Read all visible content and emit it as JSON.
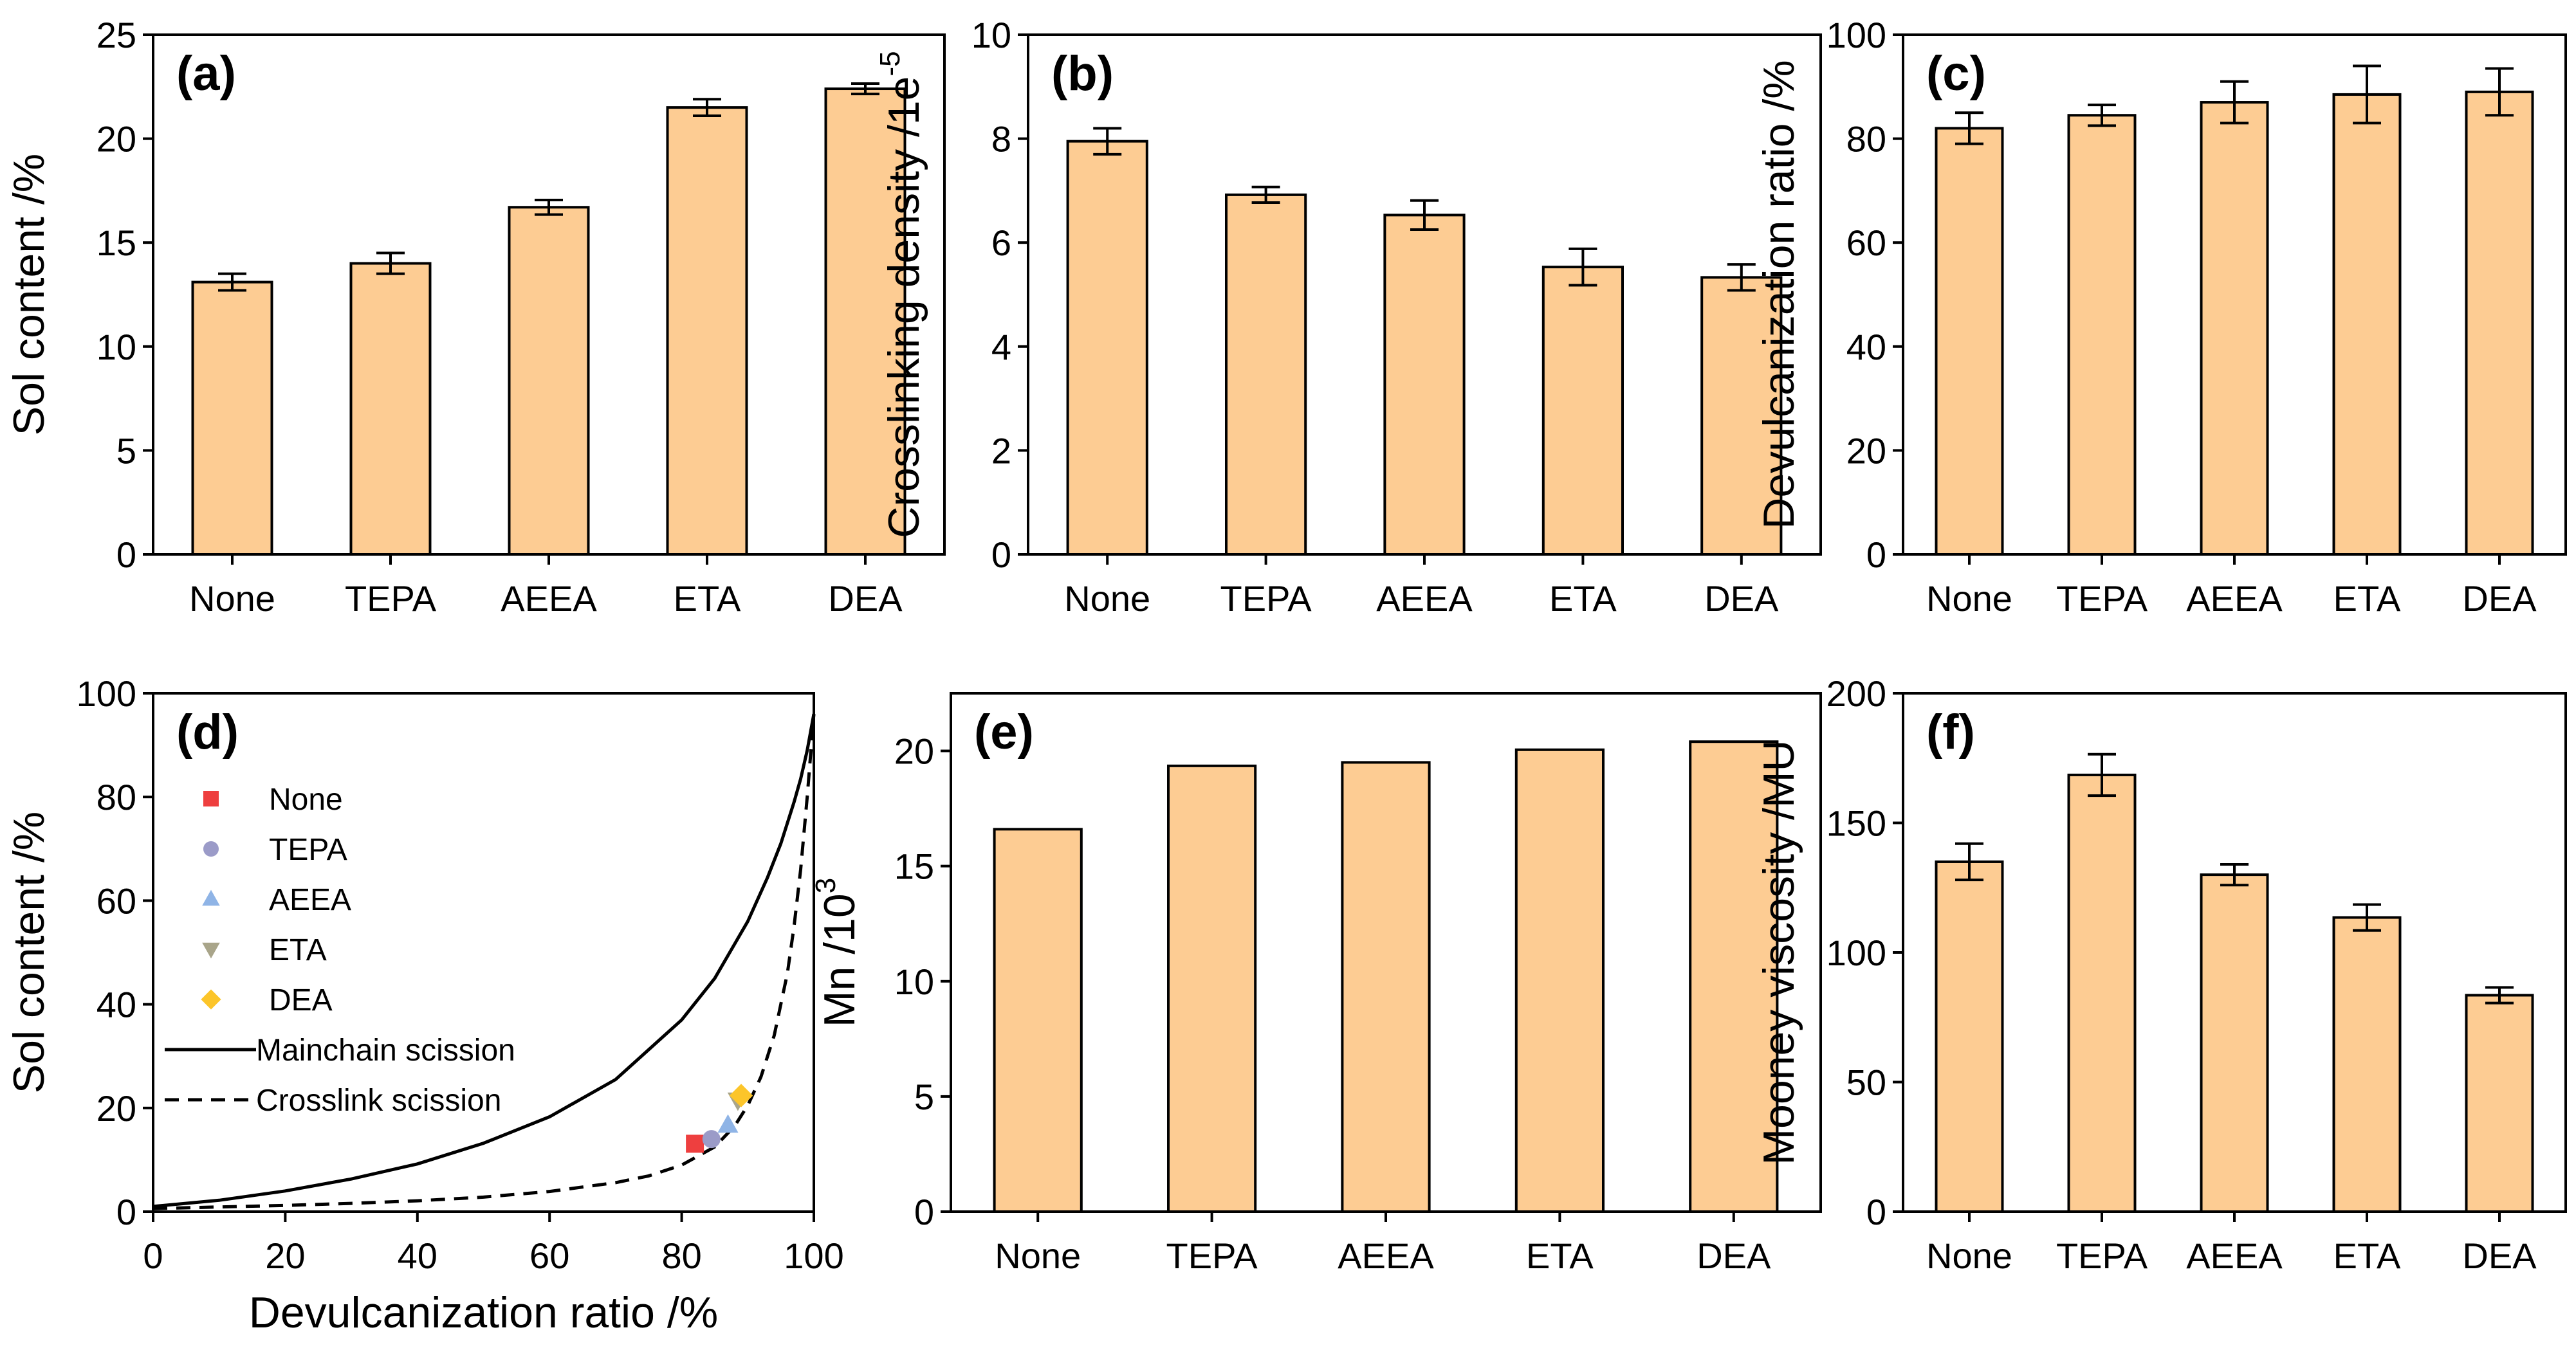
{
  "colors": {
    "bar_fill": "#fdcc93",
    "none_marker": "#ee3f3f",
    "tepa_marker": "#9b9bc8",
    "aeea_marker": "#8fb4e6",
    "eta_marker": "#a9a58a",
    "dea_marker": "#fcc52a"
  },
  "chart_data": [
    {
      "id": "a",
      "panel_label": "(a)",
      "type": "bar",
      "categories": [
        "None",
        "TEPA",
        "AEEA",
        "ETA",
        "DEA"
      ],
      "values": [
        13.1,
        14.0,
        16.7,
        21.5,
        22.4
      ],
      "errors": [
        0.4,
        0.5,
        0.35,
        0.4,
        0.25
      ],
      "ylabel": "Sol content /%",
      "ylim": [
        0,
        25
      ],
      "yticks": [
        0,
        5,
        10,
        15,
        20,
        25
      ],
      "ytick_labels": [
        "0",
        "5",
        "10",
        "15",
        "20",
        "25"
      ]
    },
    {
      "id": "b",
      "panel_label": "(b)",
      "type": "bar",
      "categories": [
        "None",
        "TEPA",
        "AEEA",
        "ETA",
        "DEA"
      ],
      "values": [
        7.95,
        6.92,
        6.53,
        5.53,
        5.33
      ],
      "errors": [
        0.25,
        0.15,
        0.28,
        0.35,
        0.25
      ],
      "ylabel": "Crosslinking density /1e",
      "ylabel_sup": "-5",
      "ylim": [
        0,
        10
      ],
      "yticks": [
        0,
        2,
        4,
        6,
        8,
        10
      ],
      "ytick_labels": [
        "0",
        "2",
        "4",
        "6",
        "8",
        "10"
      ]
    },
    {
      "id": "c",
      "panel_label": "(c)",
      "type": "bar",
      "categories": [
        "None",
        "TEPA",
        "AEEA",
        "ETA",
        "DEA"
      ],
      "values": [
        82,
        84.5,
        87,
        88.5,
        89
      ],
      "errors": [
        3,
        2,
        4,
        5.5,
        4.5
      ],
      "ylabel": "Devulcanization ratio /%",
      "ylim": [
        0,
        100
      ],
      "yticks": [
        0,
        20,
        40,
        60,
        80,
        100
      ],
      "ytick_labels": [
        "0",
        "20",
        "40",
        "60",
        "80",
        "100"
      ]
    },
    {
      "id": "d",
      "panel_label": "(d)",
      "type": "scatter",
      "xlabel": "Devulcanization ratio /%",
      "ylabel": "Sol content /%",
      "xlim": [
        0,
        100
      ],
      "ylim": [
        0,
        100
      ],
      "xticks": [
        0,
        20,
        40,
        60,
        80,
        100
      ],
      "xtick_labels": [
        "0",
        "20",
        "40",
        "60",
        "80",
        "100"
      ],
      "yticks": [
        0,
        20,
        40,
        60,
        80,
        100
      ],
      "ytick_labels": [
        "0",
        "20",
        "40",
        "60",
        "80",
        "100"
      ],
      "points": [
        {
          "name": "None",
          "marker": "square",
          "color_key": "none_marker",
          "x": 82,
          "y": 13.1
        },
        {
          "name": "TEPA",
          "marker": "circle",
          "color_key": "tepa_marker",
          "x": 84.5,
          "y": 14.0
        },
        {
          "name": "AEEA",
          "marker": "triangle-up",
          "color_key": "aeea_marker",
          "x": 87,
          "y": 16.7
        },
        {
          "name": "ETA",
          "marker": "triangle-down",
          "color_key": "eta_marker",
          "x": 88.5,
          "y": 21.5
        },
        {
          "name": "DEA",
          "marker": "diamond",
          "color_key": "dea_marker",
          "x": 89,
          "y": 22.4
        }
      ],
      "curves": [
        {
          "name": "Mainchain scission",
          "style": "solid",
          "x": [
            0,
            10,
            20,
            30,
            40,
            50,
            60,
            70,
            80,
            85,
            90,
            93,
            95,
            97,
            98,
            99,
            100
          ],
          "y": [
            1,
            2.2,
            4,
            6.3,
            9.2,
            13.2,
            18.3,
            25.5,
            37,
            45,
            56,
            64.5,
            71,
            79,
            83.5,
            89,
            96
          ]
        },
        {
          "name": "Crosslink scission",
          "style": "dashed",
          "x": [
            0,
            10,
            20,
            30,
            40,
            50,
            60,
            70,
            75,
            80,
            85,
            88,
            90,
            92,
            94,
            96,
            97,
            98,
            99,
            100
          ],
          "y": [
            0.6,
            0.9,
            1.2,
            1.6,
            2.1,
            2.8,
            3.9,
            5.6,
            6.9,
            9,
            12.5,
            16.5,
            20.5,
            26,
            34,
            46,
            55,
            66,
            80,
            96
          ]
        }
      ]
    },
    {
      "id": "e",
      "panel_label": "(e)",
      "type": "bar",
      "categories": [
        "None",
        "TEPA",
        "AEEA",
        "ETA",
        "DEA"
      ],
      "values": [
        16.6,
        19.35,
        19.5,
        20.05,
        20.4
      ],
      "errors": null,
      "ylabel": "Mn /10",
      "ylabel_sup": "3",
      "ylim": [
        0,
        22.5
      ],
      "yticks": [
        0,
        5,
        10,
        15,
        20
      ],
      "ytick_labels": [
        "0",
        "5",
        "10",
        "15",
        "20"
      ]
    },
    {
      "id": "f",
      "panel_label": "(f)",
      "type": "bar",
      "categories": [
        "None",
        "TEPA",
        "AEEA",
        "ETA",
        "DEA"
      ],
      "values": [
        135,
        168.5,
        130,
        113.5,
        83.5
      ],
      "errors": [
        7,
        8,
        4,
        5,
        3
      ],
      "ylabel": "Mooney viscosity /MU",
      "ylim": [
        0,
        200
      ],
      "yticks": [
        0,
        50,
        100,
        150,
        200
      ],
      "ytick_labels": [
        "0",
        "50",
        "100",
        "150",
        "200"
      ]
    }
  ]
}
